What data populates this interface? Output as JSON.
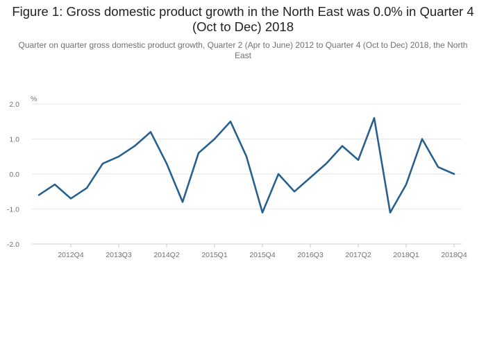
{
  "chart_data": {
    "type": "line",
    "title": "Figure 1: Gross domestic product growth in the North East was 0.0% in Quarter 4 (Oct to Dec) 2018",
    "subtitle": "Quarter on quarter gross domestic product growth, Quarter 2 (Apr to June) 2012 to Quarter 4 (Oct to Dec) 2018, the North East",
    "ylabel": "%",
    "ylim": [
      -2.0,
      2.0
    ],
    "yticks": [
      "2.0",
      "1.0",
      "0.0",
      "-1.0",
      "-2.0"
    ],
    "grid": true,
    "line_color": "#27608f",
    "x": [
      "2012Q2",
      "2012Q3",
      "2012Q4",
      "2013Q1",
      "2013Q2",
      "2013Q3",
      "2013Q4",
      "2014Q1",
      "2014Q2",
      "2014Q3",
      "2014Q4",
      "2015Q1",
      "2015Q2",
      "2015Q3",
      "2015Q4",
      "2016Q1",
      "2016Q2",
      "2016Q3",
      "2016Q4",
      "2017Q1",
      "2017Q2",
      "2017Q3",
      "2017Q4",
      "2018Q1",
      "2018Q2",
      "2018Q3",
      "2018Q4"
    ],
    "xtick_labels": [
      "2012Q4",
      "2013Q3",
      "2014Q2",
      "2015Q1",
      "2015Q4",
      "2016Q3",
      "2017Q2",
      "2018Q1",
      "2018Q4"
    ],
    "values": [
      -0.6,
      -0.3,
      -0.7,
      -0.4,
      0.3,
      0.5,
      0.8,
      1.2,
      0.3,
      -0.8,
      0.6,
      1.0,
      1.5,
      0.5,
      -1.1,
      0.0,
      -0.5,
      -0.1,
      0.3,
      0.8,
      0.4,
      1.6,
      -1.1,
      -0.3,
      1.0,
      0.2,
      0.0
    ]
  }
}
